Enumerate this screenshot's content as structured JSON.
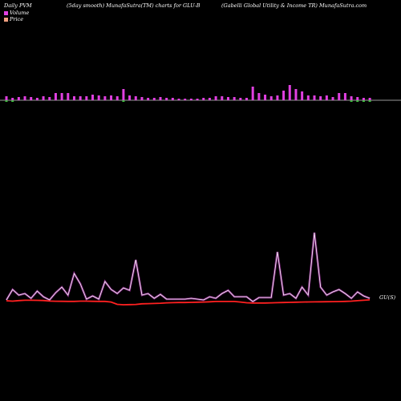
{
  "header": {
    "left": "Daily PVM",
    "center": "(5day smooth) MunafaSutra(TM) charts for GLU-B",
    "right": "(Gabelli   Global Utility & Income   TR) MunafaSutra.com"
  },
  "legend": [
    {
      "label": "Volume",
      "color": "#e040e0"
    },
    {
      "label": "Price",
      "color": "#f0a080"
    }
  ],
  "colors": {
    "volume_up": "#e040e0",
    "volume_down": "#40c040",
    "price": "#ff2020",
    "volume_line": "#e040e0",
    "axis": "#cccccc"
  },
  "chart_data": {
    "type": "bar",
    "n": 60,
    "volume_bars": [
      5,
      3,
      4,
      5,
      4,
      3,
      5,
      4,
      9,
      9,
      9,
      5,
      5,
      5,
      7,
      6,
      5,
      6,
      5,
      14,
      6,
      5,
      4,
      3,
      3,
      4,
      3,
      3,
      2,
      2,
      2,
      2,
      3,
      3,
      5,
      5,
      4,
      4,
      3,
      3,
      17,
      9,
      7,
      5,
      6,
      12,
      19,
      14,
      11,
      6,
      6,
      5,
      6,
      4,
      9,
      9,
      5,
      4,
      3,
      3
    ],
    "volume_down_bars": [
      1,
      1,
      0,
      0,
      0,
      0,
      0,
      0,
      0,
      0,
      0,
      0,
      0,
      0,
      0,
      0,
      0,
      0,
      0,
      1,
      0,
      0,
      0,
      0,
      0,
      0,
      0,
      0,
      0,
      0,
      0,
      0,
      0,
      0,
      0,
      0,
      0,
      0,
      0,
      0,
      0,
      0,
      0,
      0,
      0,
      0,
      0,
      0,
      0,
      0,
      0,
      0,
      0,
      0,
      0,
      0,
      1,
      1,
      1,
      1
    ],
    "volume_line": [
      2,
      15,
      8,
      10,
      4,
      13,
      6,
      2,
      11,
      18,
      8,
      35,
      22,
      3,
      7,
      3,
      25,
      15,
      10,
      17,
      14,
      52,
      8,
      10,
      4,
      9,
      3,
      3,
      3,
      3,
      4,
      3,
      2,
      6,
      4,
      10,
      14,
      6,
      6,
      6,
      0,
      5,
      5,
      5,
      62,
      8,
      10,
      4,
      18,
      8,
      86,
      18,
      8,
      12,
      15,
      10,
      4,
      12,
      7,
      4
    ],
    "price_line": [
      1,
      0.5,
      1.2,
      1.6,
      1.6,
      1.5,
      1.3,
      0.6,
      0.4,
      0.3,
      0.2,
      0.2,
      0.5,
      0.5,
      0.3,
      0.2,
      0.2,
      -0.6,
      -3.5,
      -4,
      -3.8,
      -3.6,
      -2.8,
      -2.6,
      -2.4,
      -2.1,
      -1.6,
      -1.4,
      -1.2,
      -1.2,
      -1,
      -0.8,
      -0.6,
      -0.3,
      0.1,
      0.1,
      0.1,
      0.1,
      -0.6,
      -1.5,
      -1.8,
      -1.8,
      -1.8,
      -1.6,
      -1.4,
      -1.2,
      -1.0,
      -0.8,
      -0.6,
      -0.5,
      -0.4,
      -0.3,
      -0.2,
      -0.1,
      0,
      0.2,
      0.5,
      1.1,
      1.6,
      2.1
    ],
    "end_label": "GU(S)"
  }
}
